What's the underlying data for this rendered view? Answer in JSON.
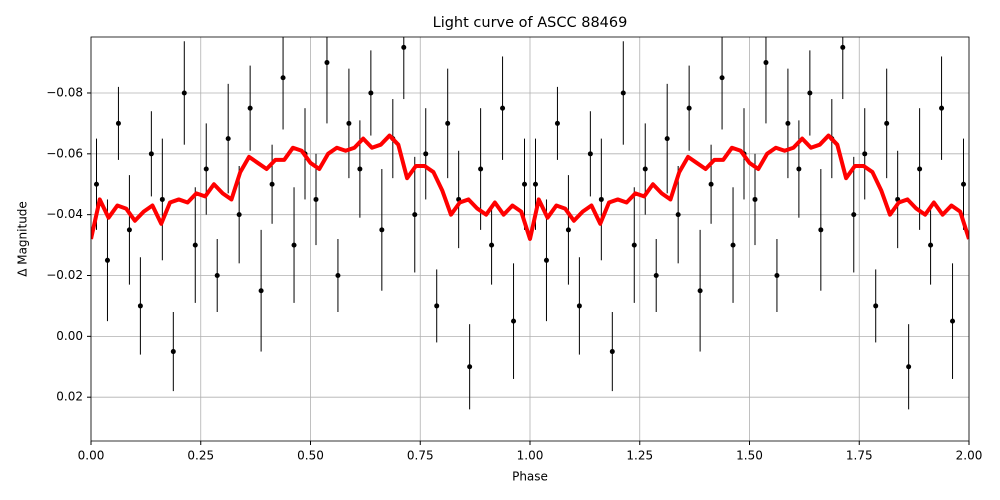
{
  "chart_data": {
    "type": "errorbar_line",
    "title": "Light curve of ASCC 88469",
    "x_label": "Phase",
    "y_label": "Δ Magnitude",
    "xlim": [
      0,
      2
    ],
    "ylim": [
      0.0344,
      -0.0984
    ],
    "grid": true,
    "xticks": [
      {
        "value": 0,
        "label": "0.00"
      },
      {
        "value": 0.25,
        "label": "0.25"
      },
      {
        "value": 0.5,
        "label": "0.50"
      },
      {
        "value": 0.75,
        "label": "0.75"
      },
      {
        "value": 1,
        "label": "1.00"
      },
      {
        "value": 1.25,
        "label": "1.25"
      },
      {
        "value": 1.5,
        "label": "1.50"
      },
      {
        "value": 1.75,
        "label": "1.75"
      },
      {
        "value": 2,
        "label": "2.00"
      }
    ],
    "yticks": [
      {
        "value": -0.08,
        "label": "−0.08"
      },
      {
        "value": -0.06,
        "label": "−0.06"
      },
      {
        "value": -0.04,
        "label": "−0.04"
      },
      {
        "value": -0.02,
        "label": "−0.02"
      },
      {
        "value": 0,
        "label": "0.00"
      },
      {
        "value": 0.02,
        "label": "0.02"
      }
    ],
    "points": {
      "color": "#000000",
      "x": [
        0.0125,
        0.0375,
        0.0625,
        0.0875,
        0.1125,
        0.1375,
        0.1625,
        0.1875,
        0.2125,
        0.2375,
        0.2625,
        0.2875,
        0.3125,
        0.3375,
        0.3625,
        0.3875,
        0.4125,
        0.4375,
        0.4625,
        0.4875,
        0.5125,
        0.5375,
        0.5625,
        0.5875,
        0.6125,
        0.6375,
        0.6625,
        0.6875,
        0.7125,
        0.7375,
        0.7625,
        0.7875,
        0.8125,
        0.8375,
        0.8625,
        0.8875,
        0.9125,
        0.9375,
        0.9625,
        0.9875,
        1.0125,
        1.0375,
        1.0625,
        1.0875,
        1.1125,
        1.1375,
        1.1625,
        1.1875,
        1.2125,
        1.2375,
        1.2625,
        1.2875,
        1.3125,
        1.3375,
        1.3625,
        1.3875,
        1.4125,
        1.4375,
        1.4625,
        1.4875,
        1.5125,
        1.5375,
        1.5625,
        1.5875,
        1.6125,
        1.6375,
        1.6625,
        1.6875,
        1.7125,
        1.7375,
        1.7625,
        1.7875,
        1.8125,
        1.8375,
        1.8625,
        1.8875,
        1.9125,
        1.9375,
        1.9625,
        1.9875
      ],
      "values": [
        -0.05,
        -0.025,
        -0.07,
        -0.035,
        -0.01,
        -0.06,
        -0.045,
        0.005,
        -0.08,
        -0.03,
        -0.055,
        -0.02,
        -0.065,
        -0.04,
        -0.075,
        -0.015,
        -0.05,
        -0.085,
        -0.03,
        -0.06,
        -0.045,
        -0.09,
        -0.02,
        -0.07,
        -0.055,
        -0.08,
        -0.035,
        -0.065,
        -0.095,
        -0.04,
        -0.06,
        -0.01,
        -0.07,
        -0.045,
        0.01,
        -0.055,
        -0.03,
        -0.075,
        -0.005,
        -0.05,
        -0.05,
        -0.025,
        -0.07,
        -0.035,
        -0.01,
        -0.06,
        -0.045,
        0.005,
        -0.08,
        -0.03,
        -0.055,
        -0.02,
        -0.065,
        -0.04,
        -0.075,
        -0.015,
        -0.05,
        -0.085,
        -0.03,
        -0.06,
        -0.045,
        -0.09,
        -0.02,
        -0.07,
        -0.055,
        -0.08,
        -0.035,
        -0.065,
        -0.095,
        -0.04,
        -0.06,
        -0.01,
        -0.07,
        -0.045,
        0.01,
        -0.055,
        -0.03,
        -0.075,
        -0.005,
        -0.05
      ],
      "errors": [
        0.015,
        0.02,
        0.012,
        0.018,
        0.016,
        0.014,
        0.02,
        0.013,
        0.017,
        0.019,
        0.015,
        0.012,
        0.018,
        0.016,
        0.014,
        0.02,
        0.013,
        0.017,
        0.019,
        0.015,
        0.015,
        0.02,
        0.012,
        0.018,
        0.016,
        0.014,
        0.02,
        0.013,
        0.017,
        0.019,
        0.015,
        0.012,
        0.018,
        0.016,
        0.014,
        0.02,
        0.013,
        0.017,
        0.019,
        0.015,
        0.015,
        0.02,
        0.012,
        0.018,
        0.016,
        0.014,
        0.02,
        0.013,
        0.017,
        0.019,
        0.015,
        0.012,
        0.018,
        0.016,
        0.014,
        0.02,
        0.013,
        0.017,
        0.019,
        0.015,
        0.015,
        0.02,
        0.012,
        0.018,
        0.016,
        0.014,
        0.02,
        0.013,
        0.017,
        0.019,
        0.015,
        0.012,
        0.018,
        0.016,
        0.014,
        0.02,
        0.013,
        0.017,
        0.019,
        0.015
      ]
    },
    "trend": {
      "color": "#ff0000",
      "x": [
        0,
        0.02,
        0.04,
        0.06,
        0.08,
        0.1,
        0.12,
        0.14,
        0.16,
        0.18,
        0.2,
        0.22,
        0.24,
        0.26,
        0.28,
        0.3,
        0.32,
        0.34,
        0.36,
        0.38,
        0.4,
        0.42,
        0.44,
        0.46,
        0.48,
        0.5,
        0.52,
        0.54,
        0.56,
        0.58,
        0.6,
        0.62,
        0.64,
        0.66,
        0.68,
        0.7,
        0.72,
        0.74,
        0.76,
        0.78,
        0.8,
        0.82,
        0.84,
        0.86,
        0.88,
        0.9,
        0.92,
        0.94,
        0.96,
        0.98,
        1.0,
        1.02,
        1.04,
        1.06,
        1.08,
        1.1,
        1.12,
        1.14,
        1.16,
        1.18,
        1.2,
        1.22,
        1.24,
        1.26,
        1.28,
        1.3,
        1.32,
        1.34,
        1.36,
        1.38,
        1.4,
        1.42,
        1.44,
        1.46,
        1.48,
        1.5,
        1.52,
        1.54,
        1.56,
        1.58,
        1.6,
        1.62,
        1.64,
        1.66,
        1.68,
        1.7,
        1.72,
        1.74,
        1.76,
        1.78,
        1.8,
        1.82,
        1.84,
        1.86,
        1.88,
        1.9,
        1.92,
        1.94,
        1.96,
        1.98,
        2.0
      ],
      "values": [
        -0.032,
        -0.045,
        -0.039,
        -0.043,
        -0.042,
        -0.038,
        -0.041,
        -0.043,
        -0.037,
        -0.044,
        -0.045,
        -0.044,
        -0.047,
        -0.046,
        -0.05,
        -0.047,
        -0.045,
        -0.054,
        -0.059,
        -0.057,
        -0.055,
        -0.058,
        -0.058,
        -0.062,
        -0.061,
        -0.057,
        -0.055,
        -0.06,
        -0.062,
        -0.061,
        -0.062,
        -0.065,
        -0.062,
        -0.063,
        -0.066,
        -0.063,
        -0.052,
        -0.056,
        -0.056,
        -0.054,
        -0.048,
        -0.04,
        -0.044,
        -0.045,
        -0.042,
        -0.04,
        -0.044,
        -0.04,
        -0.043,
        -0.041,
        -0.032,
        -0.045,
        -0.039,
        -0.043,
        -0.042,
        -0.038,
        -0.041,
        -0.043,
        -0.037,
        -0.044,
        -0.045,
        -0.044,
        -0.047,
        -0.046,
        -0.05,
        -0.047,
        -0.045,
        -0.054,
        -0.059,
        -0.057,
        -0.055,
        -0.058,
        -0.058,
        -0.062,
        -0.061,
        -0.057,
        -0.055,
        -0.06,
        -0.062,
        -0.061,
        -0.062,
        -0.065,
        -0.062,
        -0.063,
        -0.066,
        -0.063,
        -0.052,
        -0.056,
        -0.056,
        -0.054,
        -0.048,
        -0.04,
        -0.044,
        -0.045,
        -0.042,
        -0.04,
        -0.044,
        -0.04,
        -0.043,
        -0.041,
        -0.032
      ]
    }
  }
}
